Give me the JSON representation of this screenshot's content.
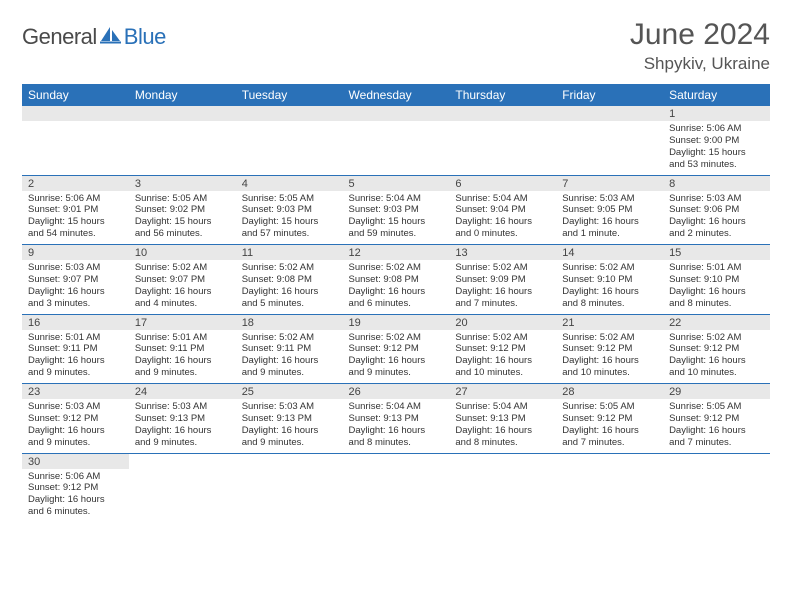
{
  "logo": {
    "general": "General",
    "blue": "Blue"
  },
  "title": "June 2024",
  "location": "Shpykiv, Ukraine",
  "colors": {
    "header_bg": "#2a71b8",
    "header_text": "#ffffff",
    "daynum_bg": "#e8e8e8",
    "cell_border": "#2a71b8",
    "title_color": "#555555"
  },
  "dayHeaders": [
    "Sunday",
    "Monday",
    "Tuesday",
    "Wednesday",
    "Thursday",
    "Friday",
    "Saturday"
  ],
  "weeks": [
    [
      null,
      null,
      null,
      null,
      null,
      null,
      {
        "num": "1",
        "sunrise": "Sunrise: 5:06 AM",
        "sunset": "Sunset: 9:00 PM",
        "daylight": "Daylight: 15 hours and 53 minutes."
      }
    ],
    [
      {
        "num": "2",
        "sunrise": "Sunrise: 5:06 AM",
        "sunset": "Sunset: 9:01 PM",
        "daylight": "Daylight: 15 hours and 54 minutes."
      },
      {
        "num": "3",
        "sunrise": "Sunrise: 5:05 AM",
        "sunset": "Sunset: 9:02 PM",
        "daylight": "Daylight: 15 hours and 56 minutes."
      },
      {
        "num": "4",
        "sunrise": "Sunrise: 5:05 AM",
        "sunset": "Sunset: 9:03 PM",
        "daylight": "Daylight: 15 hours and 57 minutes."
      },
      {
        "num": "5",
        "sunrise": "Sunrise: 5:04 AM",
        "sunset": "Sunset: 9:03 PM",
        "daylight": "Daylight: 15 hours and 59 minutes."
      },
      {
        "num": "6",
        "sunrise": "Sunrise: 5:04 AM",
        "sunset": "Sunset: 9:04 PM",
        "daylight": "Daylight: 16 hours and 0 minutes."
      },
      {
        "num": "7",
        "sunrise": "Sunrise: 5:03 AM",
        "sunset": "Sunset: 9:05 PM",
        "daylight": "Daylight: 16 hours and 1 minute."
      },
      {
        "num": "8",
        "sunrise": "Sunrise: 5:03 AM",
        "sunset": "Sunset: 9:06 PM",
        "daylight": "Daylight: 16 hours and 2 minutes."
      }
    ],
    [
      {
        "num": "9",
        "sunrise": "Sunrise: 5:03 AM",
        "sunset": "Sunset: 9:07 PM",
        "daylight": "Daylight: 16 hours and 3 minutes."
      },
      {
        "num": "10",
        "sunrise": "Sunrise: 5:02 AM",
        "sunset": "Sunset: 9:07 PM",
        "daylight": "Daylight: 16 hours and 4 minutes."
      },
      {
        "num": "11",
        "sunrise": "Sunrise: 5:02 AM",
        "sunset": "Sunset: 9:08 PM",
        "daylight": "Daylight: 16 hours and 5 minutes."
      },
      {
        "num": "12",
        "sunrise": "Sunrise: 5:02 AM",
        "sunset": "Sunset: 9:08 PM",
        "daylight": "Daylight: 16 hours and 6 minutes."
      },
      {
        "num": "13",
        "sunrise": "Sunrise: 5:02 AM",
        "sunset": "Sunset: 9:09 PM",
        "daylight": "Daylight: 16 hours and 7 minutes."
      },
      {
        "num": "14",
        "sunrise": "Sunrise: 5:02 AM",
        "sunset": "Sunset: 9:10 PM",
        "daylight": "Daylight: 16 hours and 8 minutes."
      },
      {
        "num": "15",
        "sunrise": "Sunrise: 5:01 AM",
        "sunset": "Sunset: 9:10 PM",
        "daylight": "Daylight: 16 hours and 8 minutes."
      }
    ],
    [
      {
        "num": "16",
        "sunrise": "Sunrise: 5:01 AM",
        "sunset": "Sunset: 9:11 PM",
        "daylight": "Daylight: 16 hours and 9 minutes."
      },
      {
        "num": "17",
        "sunrise": "Sunrise: 5:01 AM",
        "sunset": "Sunset: 9:11 PM",
        "daylight": "Daylight: 16 hours and 9 minutes."
      },
      {
        "num": "18",
        "sunrise": "Sunrise: 5:02 AM",
        "sunset": "Sunset: 9:11 PM",
        "daylight": "Daylight: 16 hours and 9 minutes."
      },
      {
        "num": "19",
        "sunrise": "Sunrise: 5:02 AM",
        "sunset": "Sunset: 9:12 PM",
        "daylight": "Daylight: 16 hours and 9 minutes."
      },
      {
        "num": "20",
        "sunrise": "Sunrise: 5:02 AM",
        "sunset": "Sunset: 9:12 PM",
        "daylight": "Daylight: 16 hours and 10 minutes."
      },
      {
        "num": "21",
        "sunrise": "Sunrise: 5:02 AM",
        "sunset": "Sunset: 9:12 PM",
        "daylight": "Daylight: 16 hours and 10 minutes."
      },
      {
        "num": "22",
        "sunrise": "Sunrise: 5:02 AM",
        "sunset": "Sunset: 9:12 PM",
        "daylight": "Daylight: 16 hours and 10 minutes."
      }
    ],
    [
      {
        "num": "23",
        "sunrise": "Sunrise: 5:03 AM",
        "sunset": "Sunset: 9:12 PM",
        "daylight": "Daylight: 16 hours and 9 minutes."
      },
      {
        "num": "24",
        "sunrise": "Sunrise: 5:03 AM",
        "sunset": "Sunset: 9:13 PM",
        "daylight": "Daylight: 16 hours and 9 minutes."
      },
      {
        "num": "25",
        "sunrise": "Sunrise: 5:03 AM",
        "sunset": "Sunset: 9:13 PM",
        "daylight": "Daylight: 16 hours and 9 minutes."
      },
      {
        "num": "26",
        "sunrise": "Sunrise: 5:04 AM",
        "sunset": "Sunset: 9:13 PM",
        "daylight": "Daylight: 16 hours and 8 minutes."
      },
      {
        "num": "27",
        "sunrise": "Sunrise: 5:04 AM",
        "sunset": "Sunset: 9:13 PM",
        "daylight": "Daylight: 16 hours and 8 minutes."
      },
      {
        "num": "28",
        "sunrise": "Sunrise: 5:05 AM",
        "sunset": "Sunset: 9:12 PM",
        "daylight": "Daylight: 16 hours and 7 minutes."
      },
      {
        "num": "29",
        "sunrise": "Sunrise: 5:05 AM",
        "sunset": "Sunset: 9:12 PM",
        "daylight": "Daylight: 16 hours and 7 minutes."
      }
    ],
    [
      {
        "num": "30",
        "sunrise": "Sunrise: 5:06 AM",
        "sunset": "Sunset: 9:12 PM",
        "daylight": "Daylight: 16 hours and 6 minutes."
      },
      null,
      null,
      null,
      null,
      null,
      null
    ]
  ]
}
